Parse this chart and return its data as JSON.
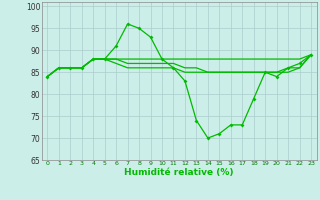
{
  "xlabel": "Humidité relative (%)",
  "background_color": "#cceee8",
  "grid_color": "#aacccc",
  "line_color": "#00bb00",
  "xlim": [
    -0.5,
    23.5
  ],
  "ylim": [
    65,
    101
  ],
  "xticks": [
    0,
    1,
    2,
    3,
    4,
    5,
    6,
    7,
    8,
    9,
    10,
    11,
    12,
    13,
    14,
    15,
    16,
    17,
    18,
    19,
    20,
    21,
    22,
    23
  ],
  "yticks": [
    65,
    70,
    75,
    80,
    85,
    90,
    95,
    100
  ],
  "line1_x": [
    0,
    1,
    2,
    3,
    4,
    5,
    6,
    7,
    8,
    9,
    10,
    11,
    12,
    13,
    14,
    15,
    16,
    17,
    18,
    19,
    20,
    21,
    22,
    23
  ],
  "line1_y": [
    84,
    86,
    86,
    86,
    88,
    88,
    91,
    96,
    95,
    93,
    88,
    86,
    83,
    74,
    70,
    71,
    73,
    73,
    79,
    85,
    84,
    86,
    87,
    89
  ],
  "line2_x": [
    0,
    1,
    2,
    3,
    4,
    5,
    6,
    7,
    8,
    9,
    10,
    11,
    12,
    13,
    14,
    15,
    16,
    17,
    18,
    19,
    20,
    21,
    22,
    23
  ],
  "line2_y": [
    84,
    86,
    86,
    86,
    88,
    88,
    88,
    88,
    88,
    88,
    88,
    88,
    88,
    88,
    88,
    88,
    88,
    88,
    88,
    88,
    88,
    88,
    88,
    89
  ],
  "line3_x": [
    0,
    1,
    2,
    3,
    4,
    5,
    6,
    7,
    8,
    9,
    10,
    11,
    12,
    13,
    14,
    15,
    16,
    17,
    18,
    19,
    20,
    21,
    22,
    23
  ],
  "line3_y": [
    84,
    86,
    86,
    86,
    88,
    88,
    87,
    86,
    86,
    86,
    86,
    86,
    85,
    85,
    85,
    85,
    85,
    85,
    85,
    85,
    85,
    85,
    86,
    89
  ],
  "line4_x": [
    0,
    1,
    2,
    3,
    4,
    5,
    6,
    7,
    8,
    9,
    10,
    11,
    12,
    13,
    14,
    15,
    16,
    17,
    18,
    19,
    20,
    21,
    22,
    23
  ],
  "line4_y": [
    84,
    86,
    86,
    86,
    88,
    88,
    88,
    87,
    87,
    87,
    87,
    87,
    86,
    86,
    85,
    85,
    85,
    85,
    85,
    85,
    85,
    86,
    86,
    89
  ]
}
